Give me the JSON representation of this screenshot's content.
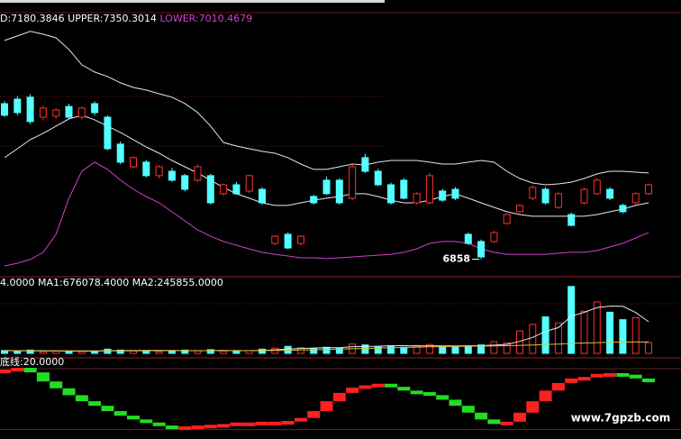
{
  "chart_data": [
    {
      "type": "candlestick",
      "up_color": "#ff3030",
      "down_color": "#54ffff",
      "ylim": [
        6768,
        8261
      ],
      "low_label": 6858,
      "candles": [
        [
          7746,
          7760,
          7670,
          7680
        ],
        [
          7772,
          7790,
          7680,
          7695
        ],
        [
          7783,
          7800,
          7630,
          7644
        ],
        [
          7669,
          7735,
          7650,
          7721
        ],
        [
          7675,
          7720,
          7660,
          7710
        ],
        [
          7730,
          7745,
          7660,
          7669
        ],
        [
          7669,
          7730,
          7655,
          7721
        ],
        [
          7746,
          7760,
          7680,
          7695
        ],
        [
          7669,
          7680,
          7480,
          7489
        ],
        [
          7515,
          7530,
          7400,
          7412
        ],
        [
          7386,
          7445,
          7375,
          7438
        ],
        [
          7412,
          7425,
          7325,
          7335
        ],
        [
          7335,
          7395,
          7320,
          7386
        ],
        [
          7360,
          7380,
          7300,
          7309
        ],
        [
          7335,
          7345,
          7245,
          7257
        ],
        [
          7309,
          7400,
          7300,
          7386
        ],
        [
          7335,
          7345,
          7170,
          7180
        ],
        [
          7232,
          7290,
          7220,
          7283
        ],
        [
          7283,
          7300,
          7225,
          7232
        ],
        [
          7247,
          7340,
          7235,
          7335
        ],
        [
          7257,
          7270,
          7170,
          7180
        ],
        [
          6948,
          6995,
          6940,
          6989
        ],
        [
          7000,
          7010,
          6915,
          6922
        ],
        [
          6948,
          6995,
          6935,
          6989
        ],
        [
          7216,
          7225,
          7170,
          7180
        ],
        [
          7309,
          7330,
          7225,
          7232
        ],
        [
          7309,
          7320,
          7170,
          7180
        ],
        [
          7206,
          7395,
          7195,
          7386
        ],
        [
          7438,
          7460,
          7350,
          7360
        ],
        [
          7360,
          7375,
          7275,
          7283
        ],
        [
          7283,
          7295,
          7170,
          7180
        ],
        [
          7309,
          7320,
          7200,
          7206
        ],
        [
          7180,
          7240,
          7170,
          7232
        ],
        [
          7180,
          7350,
          7170,
          7335
        ],
        [
          7247,
          7260,
          7185,
          7195
        ],
        [
          7257,
          7270,
          7195,
          7206
        ],
        [
          7000,
          7010,
          6940,
          6948
        ],
        [
          6959,
          6970,
          6858,
          6871
        ],
        [
          6959,
          7020,
          6950,
          7010
        ],
        [
          7062,
          7120,
          7055,
          7113
        ],
        [
          7129,
          7170,
          7120,
          7165
        ],
        [
          7206,
          7280,
          7195,
          7268
        ],
        [
          7257,
          7270,
          7170,
          7180
        ],
        [
          7154,
          7240,
          7145,
          7232
        ],
        [
          7113,
          7125,
          7045,
          7051
        ],
        [
          7180,
          7265,
          7170,
          7257
        ],
        [
          7232,
          7320,
          7225,
          7309
        ],
        [
          7257,
          7270,
          7195,
          7206
        ],
        [
          7165,
          7175,
          7120,
          7129
        ],
        [
          7180,
          7240,
          7170,
          7232
        ],
        [
          7232,
          7290,
          7225,
          7283
        ]
      ],
      "series": [
        {
          "name": "D:7180.3846",
          "color": "#e8e8e8",
          "values": [
            7438,
            7489,
            7541,
            7577,
            7618,
            7659,
            7680,
            7654,
            7618,
            7582,
            7541,
            7499,
            7463,
            7422,
            7386,
            7350,
            7309,
            7268,
            7232,
            7206,
            7180,
            7165,
            7165,
            7180,
            7195,
            7206,
            7216,
            7232,
            7232,
            7216,
            7195,
            7180,
            7180,
            7195,
            7216,
            7232,
            7206,
            7180,
            7154,
            7129,
            7113,
            7103,
            7103,
            7103,
            7103,
            7103,
            7113,
            7129,
            7144,
            7165,
            7180.3846
          ]
        },
        {
          "name": "UPPER:7350.3014",
          "color": "#e8e8e8",
          "values": [
            8107,
            8133,
            8159,
            8143,
            8122,
            8056,
            7968,
            7927,
            7901,
            7865,
            7839,
            7824,
            7803,
            7783,
            7747,
            7695,
            7618,
            7525,
            7504,
            7489,
            7474,
            7463,
            7438,
            7401,
            7371,
            7371,
            7386,
            7401,
            7396,
            7412,
            7422,
            7422,
            7422,
            7412,
            7401,
            7401,
            7412,
            7422,
            7412,
            7360,
            7319,
            7293,
            7283,
            7288,
            7298,
            7319,
            7345,
            7360,
            7360,
            7355,
            7350.3014
          ]
        },
        {
          "name": "LOWER:7010.4679",
          "color": "#d040d0",
          "values": [
            6819,
            6835,
            6856,
            6897,
            7000,
            7206,
            7360,
            7412,
            7371,
            7309,
            7257,
            7216,
            7180,
            7129,
            7077,
            7025,
            6989,
            6959,
            6938,
            6917,
            6897,
            6886,
            6876,
            6866,
            6866,
            6861,
            6866,
            6871,
            6876,
            6881,
            6886,
            6897,
            6917,
            6948,
            6959,
            6959,
            6948,
            6917,
            6897,
            6886,
            6886,
            6886,
            6886,
            6892,
            6897,
            6897,
            6907,
            6928,
            6948,
            6979,
            7010.4679
          ]
        }
      ]
    },
    {
      "type": "bar",
      "label": "4.0000",
      "ylim": [
        0,
        1580000
      ],
      "values": [
        60000,
        50000,
        70000,
        40000,
        50000,
        45000,
        40000,
        50000,
        90000,
        70000,
        50000,
        60000,
        40000,
        50000,
        70000,
        60000,
        80000,
        50000,
        40000,
        60000,
        90000,
        110000,
        150000,
        120000,
        100000,
        130000,
        110000,
        200000,
        180000,
        150000,
        160000,
        130000,
        170000,
        190000,
        150000,
        140000,
        160000,
        180000,
        250000,
        220000,
        480000,
        620000,
        780000,
        650000,
        1430000,
        900000,
        1100000,
        880000,
        720000,
        760000,
        230000
      ],
      "series": [
        {
          "name": "MA1:676078.4000",
          "color": "#e8e8e8",
          "values": [
            60000,
            58000,
            56000,
            55000,
            54000,
            51000,
            49000,
            49000,
            55000,
            59000,
            60000,
            62000,
            64000,
            62000,
            58000,
            56000,
            60000,
            62000,
            60000,
            58000,
            64000,
            76000,
            90000,
            104000,
            114000,
            124000,
            122000,
            142000,
            148000,
            152000,
            164000,
            164000,
            158000,
            162000,
            160000,
            158000,
            162000,
            164000,
            176000,
            190000,
            256000,
            342000,
            470000,
            552000,
            796000,
            876000,
            978000,
            1010000,
            1006000,
            872000,
            676078.4
          ]
        },
        {
          "name": "MA2:245855.0000",
          "color": "#d8c040",
          "values": [
            55000,
            55000,
            54000,
            54000,
            53000,
            53000,
            52000,
            52000,
            53000,
            54000,
            55000,
            56000,
            57000,
            57000,
            57000,
            57000,
            58000,
            58000,
            58000,
            58000,
            59000,
            62000,
            66000,
            72000,
            78000,
            84000,
            90000,
            98000,
            106000,
            114000,
            120000,
            126000,
            132000,
            138000,
            144000,
            148000,
            152000,
            156000,
            160000,
            164000,
            172000,
            180000,
            190000,
            198000,
            212000,
            222000,
            230000,
            236000,
            240000,
            243000,
            245855
          ]
        }
      ]
    },
    {
      "type": "step",
      "up_color": "#ff2020",
      "down_color": "#22dd22",
      "ylim": [
        10,
        105
      ],
      "baseline": {
        "value": 20,
        "label": "底线:20.0000"
      },
      "values": [
        96.7,
        99,
        93,
        81,
        72,
        63,
        55,
        49,
        42,
        36,
        31,
        27,
        23,
        21,
        22,
        23,
        24,
        25,
        27,
        27,
        28,
        28,
        29,
        33,
        42,
        55,
        66,
        73,
        76,
        78,
        74,
        69,
        67,
        63,
        57,
        49,
        40,
        31,
        25,
        28,
        40,
        55,
        69,
        79,
        85,
        87,
        91,
        92,
        90,
        85,
        80
      ]
    }
  ],
  "watermark": "www.7gpzb.com"
}
